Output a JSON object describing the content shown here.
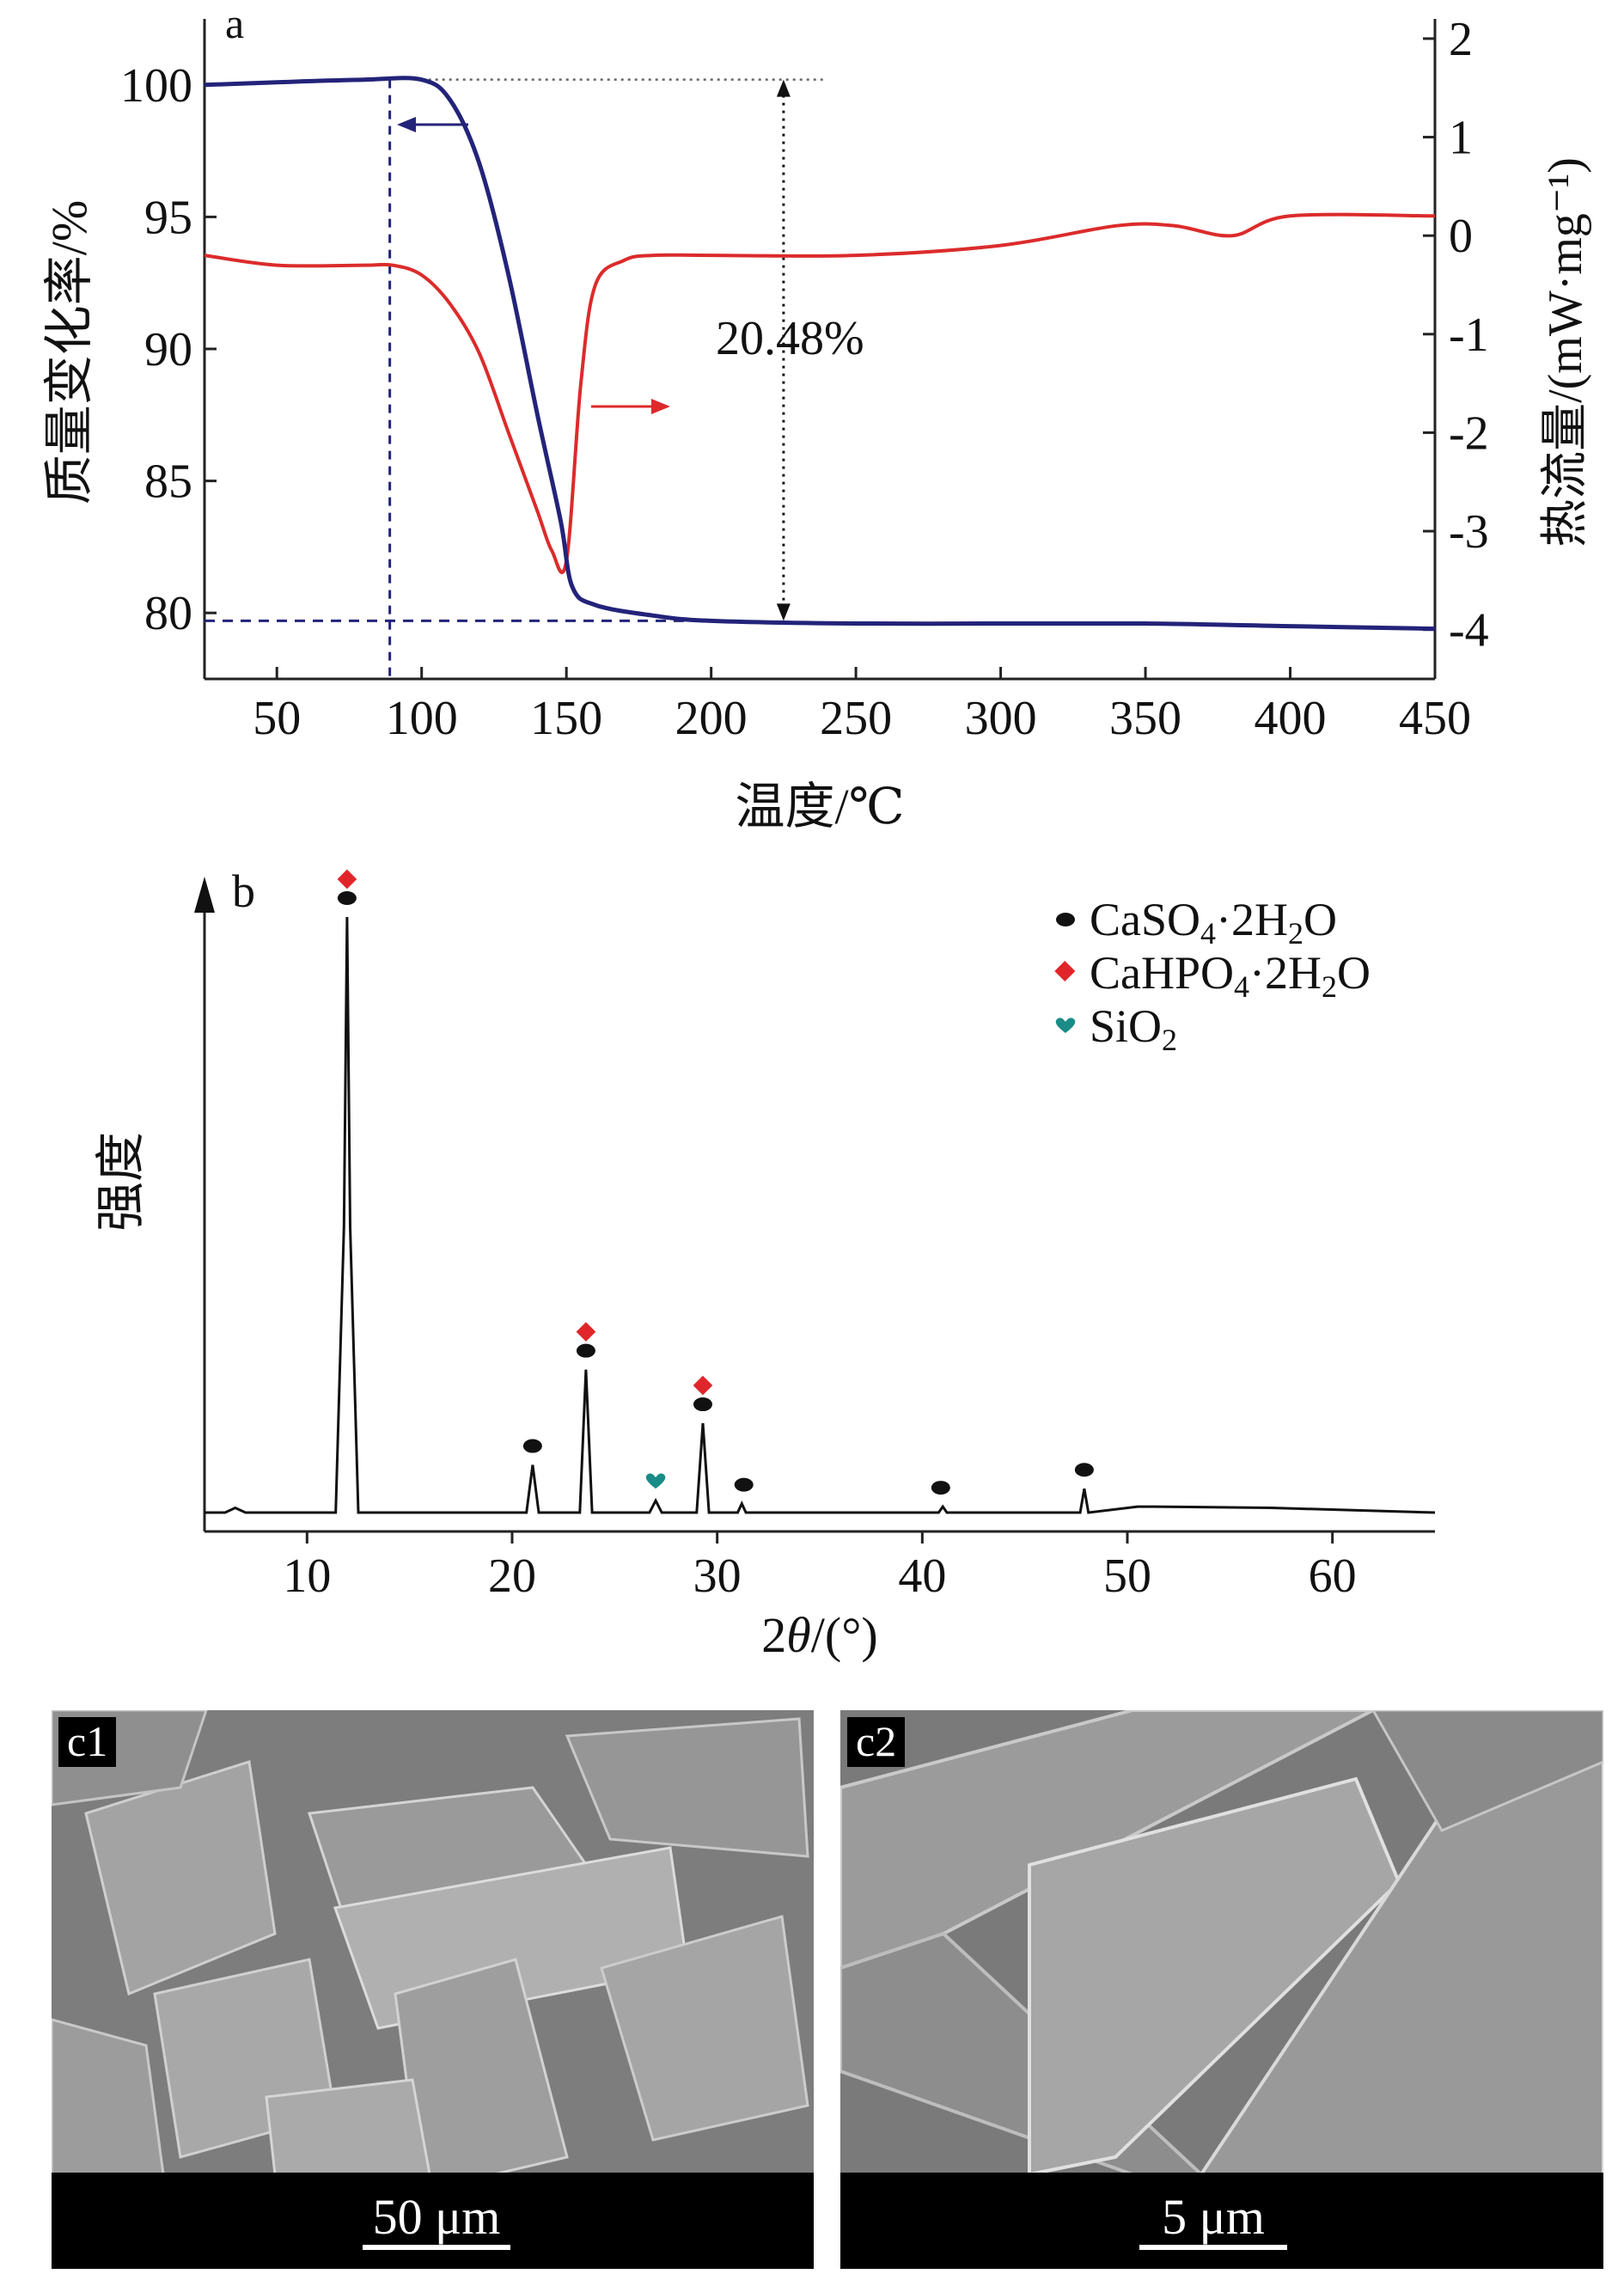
{
  "panel_a": {
    "tag": "a",
    "ylabel_left": "质量变化率/%",
    "ylabel_right": "热流量/(mW·mg⁻¹)",
    "xlabel": "温度/℃",
    "x_ticks": [
      "50",
      "100",
      "150",
      "200",
      "250",
      "300",
      "350",
      "400",
      "450"
    ],
    "y_left_ticks": [
      "100",
      "95",
      "90",
      "85",
      "80"
    ],
    "y_right_ticks": [
      "2",
      "1",
      "0",
      "-1",
      "-2",
      "-3",
      "-4"
    ],
    "annotation": "20.48%"
  },
  "panel_b": {
    "tag": "b",
    "ylabel": "强度",
    "xlabel_prefix": "2",
    "xlabel_theta": "θ",
    "xlabel_suffix": "/(°)",
    "x_ticks": [
      "10",
      "20",
      "30",
      "40",
      "50",
      "60"
    ],
    "legend": [
      {
        "main": "CaSO",
        "sub": "4",
        "tail": "·2H",
        "sub2": "2",
        "end": "O"
      },
      {
        "main": "CaHPO",
        "sub": "4",
        "tail": "·2H",
        "sub2": "2",
        "end": "O"
      },
      {
        "main": "SiO",
        "sub": "2",
        "tail": "",
        "sub2": "",
        "end": ""
      }
    ]
  },
  "panel_c1": {
    "tag": "c1",
    "scale": "50 μm"
  },
  "panel_c2": {
    "tag": "c2",
    "scale": "5 μm"
  },
  "chart_data": [
    {
      "type": "line",
      "xlabel": "温度/℃",
      "ylabel": "质量变化率/%",
      "y2label": "热流量/(mW·mg⁻¹)",
      "xlim": [
        25,
        450
      ],
      "ylim": [
        77.5,
        102.5
      ],
      "y2lim": [
        -4.5,
        2.2
      ],
      "series": [
        {
          "axis": "left",
          "color": "#23237a",
          "x": [
            25,
            50,
            80,
            100,
            110,
            120,
            130,
            140,
            148,
            152,
            160,
            180,
            200,
            250,
            300,
            350,
            400,
            450
          ],
          "y": [
            100.0,
            100.1,
            100.2,
            100.2,
            99.4,
            97.0,
            92.8,
            87.5,
            83.5,
            81.0,
            80.3,
            79.9,
            79.7,
            79.6,
            79.6,
            79.6,
            79.5,
            79.4
          ]
        },
        {
          "axis": "right",
          "color": "#dc2b2b",
          "x": [
            25,
            50,
            80,
            90,
            100,
            110,
            120,
            130,
            140,
            145,
            150,
            155,
            160,
            170,
            180,
            200,
            250,
            300,
            340,
            360,
            380,
            400,
            450
          ],
          "y": [
            -0.2,
            -0.3,
            -0.3,
            -0.3,
            -0.4,
            -0.7,
            -1.2,
            -2.0,
            -2.8,
            -3.2,
            -3.3,
            -1.5,
            -0.5,
            -0.25,
            -0.2,
            -0.2,
            -0.2,
            -0.1,
            0.1,
            0.1,
            0.0,
            0.2,
            0.2
          ]
        }
      ],
      "annotations": [
        {
          "text": "20.48%",
          "from": 100.2,
          "to": 79.7,
          "at_x": 225
        }
      ]
    },
    {
      "type": "line",
      "xlabel": "2θ/(°)",
      "ylabel": "强度",
      "xlim": [
        5,
        65
      ],
      "ylim": [
        0,
        100
      ],
      "series": [
        {
          "color": "#000000",
          "x": [
            5,
            6,
            6.5,
            7,
            11.4,
            11.8,
            11.95,
            12.1,
            12.5,
            20.7,
            21.0,
            21.3,
            23.3,
            23.6,
            23.9,
            26.7,
            27.0,
            27.3,
            29.0,
            29.3,
            29.6,
            31.0,
            31.2,
            31.4,
            40.8,
            41.0,
            41.2,
            47.7,
            47.9,
            48.1,
            50.5,
            51.3,
            57.0,
            65
          ],
          "y": [
            0,
            0,
            0.8,
            0,
            0,
            48,
            100,
            48,
            0,
            0,
            8,
            0,
            0,
            24,
            0,
            0,
            2,
            0,
            0,
            15,
            0,
            0,
            1.5,
            0,
            0,
            1,
            0,
            0,
            4,
            0,
            1,
            1,
            0.8,
            0
          ]
        }
      ],
      "markers": [
        {
          "x": 11.95,
          "y": 100,
          "phases": [
            "CaSO4·2H2O",
            "CaHPO4·2H2O"
          ]
        },
        {
          "x": 21.0,
          "y": 8,
          "phases": [
            "CaSO4·2H2O"
          ]
        },
        {
          "x": 23.6,
          "y": 24,
          "phases": [
            "CaSO4·2H2O",
            "CaHPO4·2H2O"
          ]
        },
        {
          "x": 27.0,
          "y": 2,
          "phases": [
            "SiO2"
          ]
        },
        {
          "x": 29.3,
          "y": 15,
          "phases": [
            "CaSO4·2H2O",
            "CaHPO4·2H2O"
          ]
        },
        {
          "x": 31.3,
          "y": 1.5,
          "phases": [
            "CaSO4·2H2O"
          ]
        },
        {
          "x": 40.9,
          "y": 1,
          "phases": [
            "CaSO4·2H2O"
          ]
        },
        {
          "x": 47.9,
          "y": 4,
          "phases": [
            "CaSO4·2H2O"
          ]
        }
      ]
    }
  ]
}
